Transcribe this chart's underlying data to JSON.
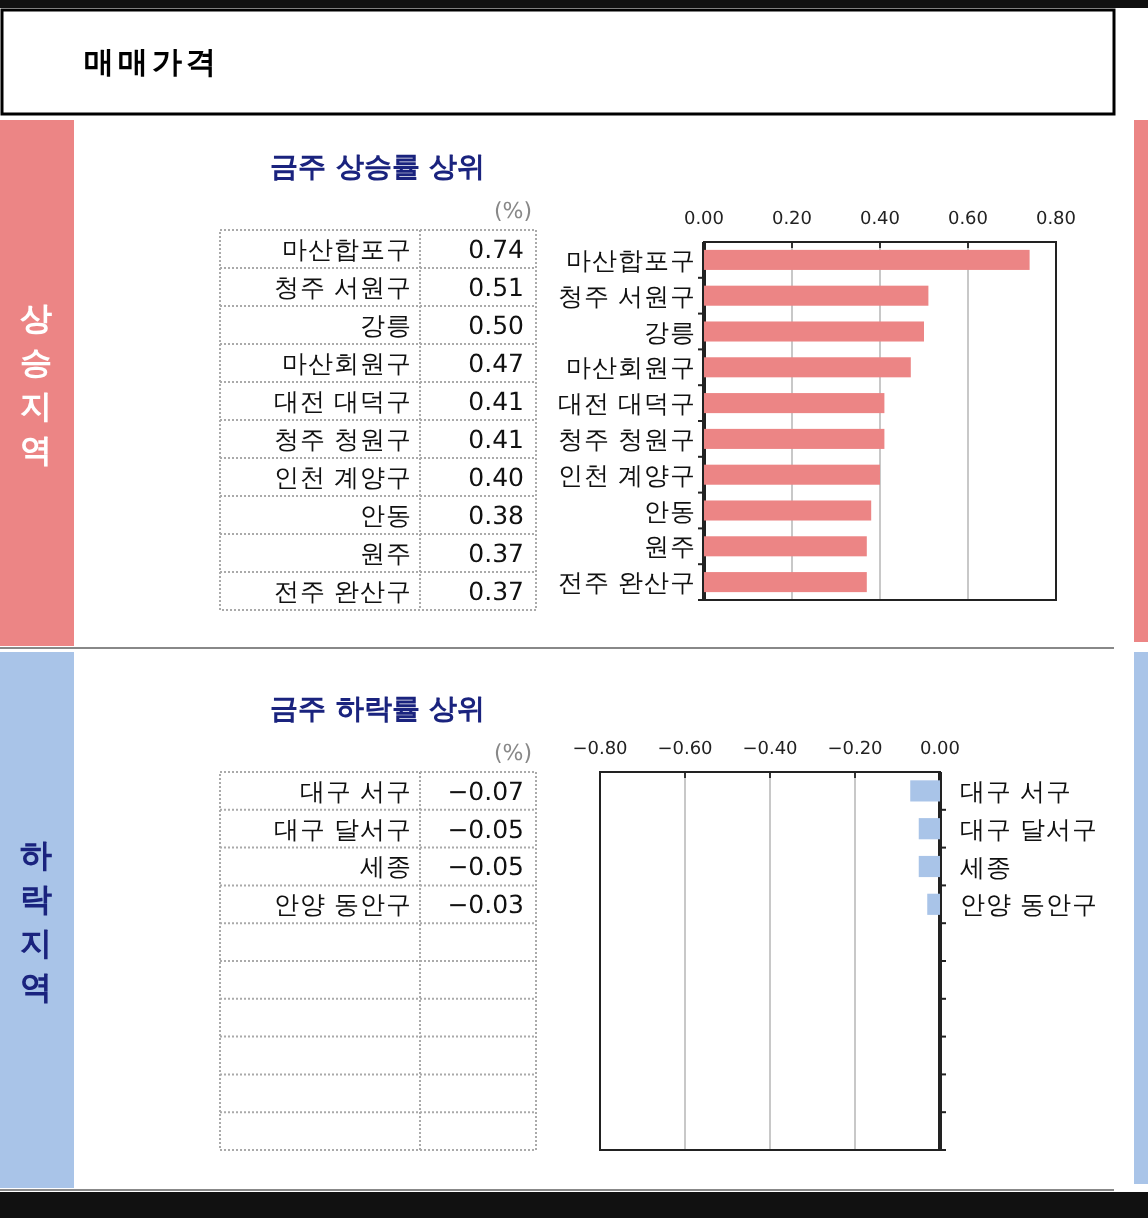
{
  "chart_data": [
    {
      "type": "bar",
      "orientation": "horizontal",
      "title": "금주 상승률 상위",
      "annotations": [
        "매매가격",
        "상승지역",
        "(%)"
      ],
      "categories": [
        "마산합포구",
        "청주 서원구",
        "강릉",
        "마산회원구",
        "대전 대덕구",
        "청주 청원구",
        "인천 계양구",
        "안동",
        "원주",
        "전주 완산구"
      ],
      "values": [
        0.74,
        0.51,
        0.5,
        0.47,
        0.41,
        0.41,
        0.4,
        0.38,
        0.37,
        0.37
      ],
      "value_labels": [
        "0.74",
        "0.51",
        "0.50",
        "0.47",
        "0.41",
        "0.41",
        "0.40",
        "0.38",
        "0.37",
        "0.37"
      ],
      "color": "#ec8585",
      "xlim": [
        0,
        0.8
      ],
      "xticks": [
        {
          "value": 0,
          "label": "0.00"
        },
        {
          "value": 0.2,
          "label": "0.20"
        },
        {
          "value": 0.4,
          "label": "0.40"
        },
        {
          "value": 0.6,
          "label": "0.60"
        },
        {
          "value": 0.8,
          "label": "0.80"
        }
      ],
      "grid": "x"
    },
    {
      "type": "bar",
      "orientation": "horizontal",
      "title": "금주 하락률 상위",
      "annotations": [
        "하락지역",
        "(%)"
      ],
      "categories": [
        "대구 서구",
        "대구 달서구",
        "세종",
        "안양 동안구",
        null,
        null,
        null,
        null,
        null,
        null
      ],
      "values": [
        -0.07,
        -0.05,
        -0.05,
        -0.03,
        null,
        null,
        null,
        null,
        null,
        null
      ],
      "value_labels": [
        "−0.07",
        "−0.05",
        "−0.05",
        "−0.03",
        null,
        null,
        null,
        null,
        null,
        null
      ],
      "color": "#a9c4e8",
      "xlim": [
        -0.8,
        0
      ],
      "xticks": [
        {
          "value": -0.8,
          "label": "−0.80"
        },
        {
          "value": -0.6,
          "label": "−0.60"
        },
        {
          "value": -0.4,
          "label": "−0.40"
        },
        {
          "value": -0.2,
          "label": "−0.20"
        },
        {
          "value": 0,
          "label": "0.00"
        }
      ],
      "grid": "x"
    }
  ]
}
